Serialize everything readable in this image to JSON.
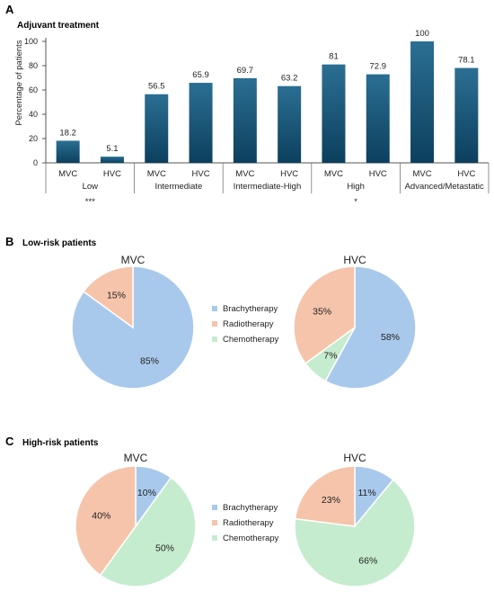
{
  "colors": {
    "bar_top": "#2b6f93",
    "bar_bottom": "#0c3f5e",
    "brachytherapy": "#a9c9ec",
    "radiotherapy": "#f5c4ab",
    "chemotherapy": "#c5ecce",
    "axis": "#555555"
  },
  "chart_data": [
    {
      "panel": "A",
      "type": "bar",
      "title": "Adjuvant treatment",
      "ylabel": "Percentage of patients",
      "ylim": [
        0,
        100
      ],
      "yticks": [
        0,
        20,
        40,
        60,
        80,
        100
      ],
      "groups": [
        {
          "name": "Low",
          "significance": "***",
          "bars": [
            {
              "label": "MVC",
              "value": 18.2
            },
            {
              "label": "HVC",
              "value": 5.1
            }
          ]
        },
        {
          "name": "Intermediate",
          "significance": "",
          "bars": [
            {
              "label": "MVC",
              "value": 56.5
            },
            {
              "label": "HVC",
              "value": 65.9
            }
          ]
        },
        {
          "name": "Intermediate-High",
          "significance": "",
          "bars": [
            {
              "label": "MVC",
              "value": 69.7
            },
            {
              "label": "HVC",
              "value": 63.2
            }
          ]
        },
        {
          "name": "High",
          "significance": "*",
          "bars": [
            {
              "label": "MVC",
              "value": 81
            },
            {
              "label": "HVC",
              "value": 72.9
            }
          ]
        },
        {
          "name": "Advanced/Metastatic",
          "significance": "",
          "bars": [
            {
              "label": "MVC",
              "value": 100
            },
            {
              "label": "HVC",
              "value": 78.1
            }
          ]
        }
      ]
    },
    {
      "panel": "B",
      "type": "pie",
      "title": "Low-risk patients",
      "legend": [
        "Brachytherapy",
        "Radiotherapy",
        "Chemotherapy"
      ],
      "pies": [
        {
          "name": "MVC",
          "slices": [
            {
              "label": "Brachytherapy",
              "value": 85
            },
            {
              "label": "Radiotherapy",
              "value": 15
            },
            {
              "label": "Chemotherapy",
              "value": 0
            }
          ]
        },
        {
          "name": "HVC",
          "slices": [
            {
              "label": "Brachytherapy",
              "value": 58
            },
            {
              "label": "Radiotherapy",
              "value": 35
            },
            {
              "label": "Chemotherapy",
              "value": 7
            }
          ]
        }
      ]
    },
    {
      "panel": "C",
      "type": "pie",
      "title": "High-risk patients",
      "legend": [
        "Brachytherapy",
        "Radiotherapy",
        "Chemotherapy"
      ],
      "pies": [
        {
          "name": "MVC",
          "slices": [
            {
              "label": "Brachytherapy",
              "value": 10
            },
            {
              "label": "Radiotherapy",
              "value": 40
            },
            {
              "label": "Chemotherapy",
              "value": 50
            }
          ]
        },
        {
          "name": "HVC",
          "slices": [
            {
              "label": "Brachytherapy",
              "value": 11
            },
            {
              "label": "Radiotherapy",
              "value": 23
            },
            {
              "label": "Chemotherapy",
              "value": 66
            }
          ]
        }
      ]
    }
  ]
}
